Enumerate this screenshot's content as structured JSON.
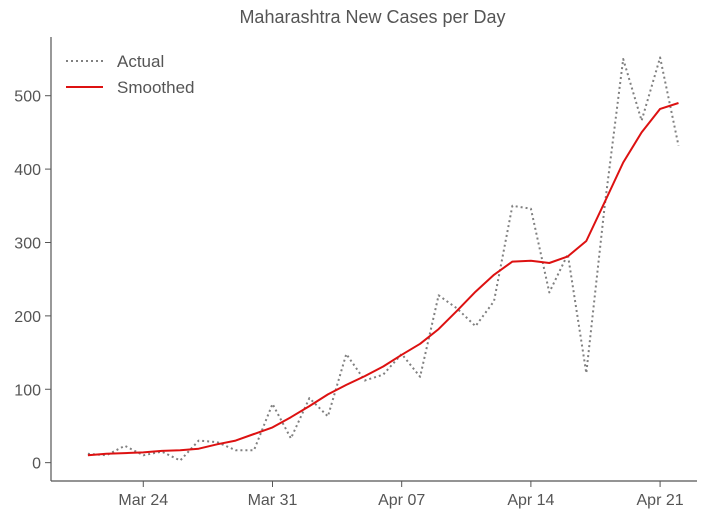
{
  "chart_data": {
    "type": "line",
    "title": "Maharashtra New Cases per Day",
    "xlabel": "",
    "ylabel": "",
    "x": [
      "2020-03-21",
      "2020-03-22",
      "2020-03-23",
      "2020-03-24",
      "2020-03-25",
      "2020-03-26",
      "2020-03-27",
      "2020-03-28",
      "2020-03-29",
      "2020-03-30",
      "2020-03-31",
      "2020-04-01",
      "2020-04-02",
      "2020-04-03",
      "2020-04-04",
      "2020-04-05",
      "2020-04-06",
      "2020-04-07",
      "2020-04-08",
      "2020-04-09",
      "2020-04-10",
      "2020-04-11",
      "2020-04-12",
      "2020-04-13",
      "2020-04-14",
      "2020-04-15",
      "2020-04-16",
      "2020-04-17",
      "2020-04-18",
      "2020-04-19",
      "2020-04-20",
      "2020-04-21",
      "2020-04-22"
    ],
    "series": [
      {
        "name": "Actual",
        "color": "#808080",
        "style": "dotted",
        "values": [
          12,
          10,
          23,
          10,
          15,
          3,
          30,
          28,
          17,
          17,
          80,
          33,
          88,
          63,
          148,
          112,
          120,
          148,
          117,
          228,
          210,
          186,
          220,
          350,
          346,
          232,
          284,
          122,
          350,
          550,
          466,
          552,
          432
        ]
      },
      {
        "name": "Smoothed",
        "color": "#dd1111",
        "style": "solid",
        "values": [
          10,
          12,
          13,
          14,
          16,
          17,
          19,
          25,
          30,
          39,
          48,
          62,
          77,
          93,
          106,
          118,
          131,
          147,
          162,
          182,
          207,
          233,
          256,
          274,
          275,
          272,
          281,
          302,
          355,
          409,
          450,
          482,
          490
        ]
      }
    ],
    "xticks": [
      {
        "date": "2020-03-24",
        "label": "Mar 24"
      },
      {
        "date": "2020-03-31",
        "label": "Mar 31"
      },
      {
        "date": "2020-04-07",
        "label": "Apr 07"
      },
      {
        "date": "2020-04-14",
        "label": "Apr 14"
      },
      {
        "date": "2020-04-21",
        "label": "Apr 21"
      }
    ],
    "yticks": [
      0,
      100,
      200,
      300,
      400,
      500
    ],
    "xlim": [
      "2020-03-19",
      "2020-04-23"
    ],
    "ylim": [
      -25,
      580
    ],
    "grid": false,
    "legend_position": "top-left"
  }
}
